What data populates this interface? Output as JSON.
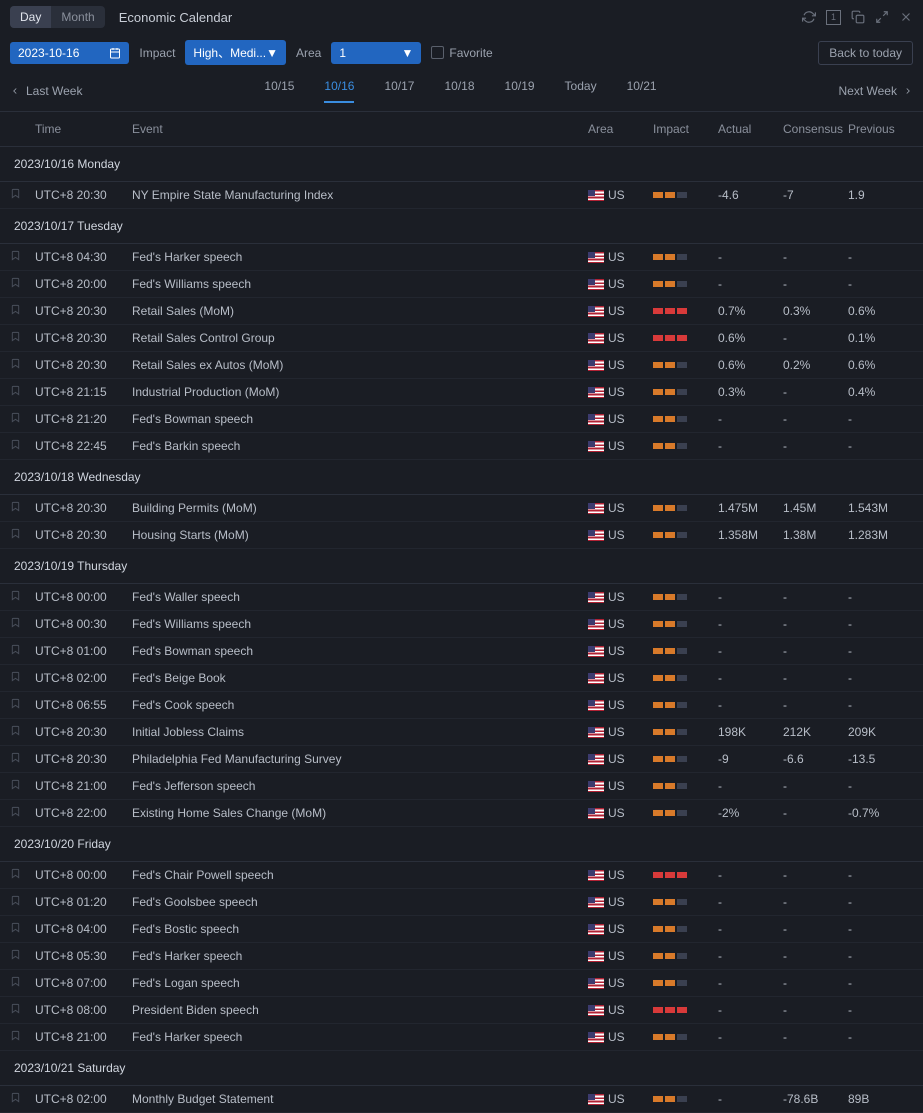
{
  "header": {
    "day_label": "Day",
    "month_label": "Month",
    "title": "Economic Calendar"
  },
  "filters": {
    "date_value": "2023-10-16",
    "impact_label": "Impact",
    "impact_value": "High、Medi...",
    "area_label": "Area",
    "area_value": "1",
    "favorite_label": "Favorite",
    "back_today": "Back to today"
  },
  "weeknav": {
    "last_week": "Last Week",
    "next_week": "Next Week",
    "tabs": [
      "10/15",
      "10/16",
      "10/17",
      "10/18",
      "10/19",
      "Today",
      "10/21"
    ],
    "active_index": 1
  },
  "columns": {
    "time": "Time",
    "event": "Event",
    "area": "Area",
    "impact": "Impact",
    "actual": "Actual",
    "consensus": "Consensus",
    "previous": "Previous"
  },
  "days": [
    {
      "header": "2023/10/16 Monday",
      "events": [
        {
          "time": "UTC+8 20:30",
          "event": "NY Empire State Manufacturing Index",
          "area": "US",
          "impact": 2,
          "impactLevel": "med",
          "actual": "-4.6",
          "consensus": "-7",
          "previous": "1.9"
        }
      ]
    },
    {
      "header": "2023/10/17 Tuesday",
      "events": [
        {
          "time": "UTC+8 04:30",
          "event": "Fed's Harker speech",
          "area": "US",
          "impact": 2,
          "impactLevel": "med",
          "actual": "-",
          "consensus": "-",
          "previous": "-"
        },
        {
          "time": "UTC+8 20:00",
          "event": "Fed's Williams speech",
          "area": "US",
          "impact": 2,
          "impactLevel": "med",
          "actual": "-",
          "consensus": "-",
          "previous": "-"
        },
        {
          "time": "UTC+8 20:30",
          "event": "Retail Sales (MoM)",
          "area": "US",
          "impact": 3,
          "impactLevel": "high",
          "actual": "0.7%",
          "consensus": "0.3%",
          "previous": "0.6%"
        },
        {
          "time": "UTC+8 20:30",
          "event": "Retail Sales Control Group",
          "area": "US",
          "impact": 3,
          "impactLevel": "high",
          "actual": "0.6%",
          "consensus": "-",
          "previous": "0.1%"
        },
        {
          "time": "UTC+8 20:30",
          "event": "Retail Sales ex Autos (MoM)",
          "area": "US",
          "impact": 2,
          "impactLevel": "med",
          "actual": "0.6%",
          "consensus": "0.2%",
          "previous": "0.6%"
        },
        {
          "time": "UTC+8 21:15",
          "event": "Industrial Production (MoM)",
          "area": "US",
          "impact": 2,
          "impactLevel": "med",
          "actual": "0.3%",
          "consensus": "-",
          "previous": "0.4%"
        },
        {
          "time": "UTC+8 21:20",
          "event": "Fed's Bowman speech",
          "area": "US",
          "impact": 2,
          "impactLevel": "med",
          "actual": "-",
          "consensus": "-",
          "previous": "-"
        },
        {
          "time": "UTC+8 22:45",
          "event": "Fed's Barkin speech",
          "area": "US",
          "impact": 2,
          "impactLevel": "med",
          "actual": "-",
          "consensus": "-",
          "previous": "-"
        }
      ]
    },
    {
      "header": "2023/10/18 Wednesday",
      "events": [
        {
          "time": "UTC+8 20:30",
          "event": "Building Permits (MoM)",
          "area": "US",
          "impact": 2,
          "impactLevel": "med",
          "actual": "1.475M",
          "consensus": "1.45M",
          "previous": "1.543M"
        },
        {
          "time": "UTC+8 20:30",
          "event": "Housing Starts (MoM)",
          "area": "US",
          "impact": 2,
          "impactLevel": "med",
          "actual": "1.358M",
          "consensus": "1.38M",
          "previous": "1.283M"
        }
      ]
    },
    {
      "header": "2023/10/19 Thursday",
      "events": [
        {
          "time": "UTC+8 00:00",
          "event": "Fed's Waller speech",
          "area": "US",
          "impact": 2,
          "impactLevel": "med",
          "actual": "-",
          "consensus": "-",
          "previous": "-"
        },
        {
          "time": "UTC+8 00:30",
          "event": "Fed's Williams speech",
          "area": "US",
          "impact": 2,
          "impactLevel": "med",
          "actual": "-",
          "consensus": "-",
          "previous": "-"
        },
        {
          "time": "UTC+8 01:00",
          "event": "Fed's Bowman speech",
          "area": "US",
          "impact": 2,
          "impactLevel": "med",
          "actual": "-",
          "consensus": "-",
          "previous": "-"
        },
        {
          "time": "UTC+8 02:00",
          "event": "Fed's Beige Book",
          "area": "US",
          "impact": 2,
          "impactLevel": "med",
          "actual": "-",
          "consensus": "-",
          "previous": "-"
        },
        {
          "time": "UTC+8 06:55",
          "event": "Fed's Cook speech",
          "area": "US",
          "impact": 2,
          "impactLevel": "med",
          "actual": "-",
          "consensus": "-",
          "previous": "-"
        },
        {
          "time": "UTC+8 20:30",
          "event": "Initial Jobless Claims",
          "area": "US",
          "impact": 2,
          "impactLevel": "med",
          "actual": "198K",
          "consensus": "212K",
          "previous": "209K"
        },
        {
          "time": "UTC+8 20:30",
          "event": "Philadelphia Fed Manufacturing Survey",
          "area": "US",
          "impact": 2,
          "impactLevel": "med",
          "actual": "-9",
          "consensus": "-6.6",
          "previous": "-13.5"
        },
        {
          "time": "UTC+8 21:00",
          "event": "Fed's Jefferson speech",
          "area": "US",
          "impact": 2,
          "impactLevel": "med",
          "actual": "-",
          "consensus": "-",
          "previous": "-"
        },
        {
          "time": "UTC+8 22:00",
          "event": "Existing Home Sales Change (MoM)",
          "area": "US",
          "impact": 2,
          "impactLevel": "med",
          "actual": "-2%",
          "consensus": "-",
          "previous": "-0.7%"
        }
      ]
    },
    {
      "header": "2023/10/20 Friday",
      "events": [
        {
          "time": "UTC+8 00:00",
          "event": "Fed's Chair Powell speech",
          "area": "US",
          "impact": 3,
          "impactLevel": "high",
          "actual": "-",
          "consensus": "-",
          "previous": "-"
        },
        {
          "time": "UTC+8 01:20",
          "event": "Fed's Goolsbee speech",
          "area": "US",
          "impact": 2,
          "impactLevel": "med",
          "actual": "-",
          "consensus": "-",
          "previous": "-"
        },
        {
          "time": "UTC+8 04:00",
          "event": "Fed's Bostic speech",
          "area": "US",
          "impact": 2,
          "impactLevel": "med",
          "actual": "-",
          "consensus": "-",
          "previous": "-"
        },
        {
          "time": "UTC+8 05:30",
          "event": "Fed's Harker speech",
          "area": "US",
          "impact": 2,
          "impactLevel": "med",
          "actual": "-",
          "consensus": "-",
          "previous": "-"
        },
        {
          "time": "UTC+8 07:00",
          "event": "Fed's Logan speech",
          "area": "US",
          "impact": 2,
          "impactLevel": "med",
          "actual": "-",
          "consensus": "-",
          "previous": "-"
        },
        {
          "time": "UTC+8 08:00",
          "event": "President Biden speech",
          "area": "US",
          "impact": 3,
          "impactLevel": "high",
          "actual": "-",
          "consensus": "-",
          "previous": "-"
        },
        {
          "time": "UTC+8 21:00",
          "event": "Fed's Harker speech",
          "area": "US",
          "impact": 2,
          "impactLevel": "med",
          "actual": "-",
          "consensus": "-",
          "previous": "-"
        }
      ]
    },
    {
      "header": "2023/10/21 Saturday",
      "events": [
        {
          "time": "UTC+8 02:00",
          "event": "Monthly Budget Statement",
          "area": "US",
          "impact": 2,
          "impactLevel": "med",
          "actual": "-",
          "consensus": "-78.6B",
          "previous": "89B"
        }
      ]
    }
  ]
}
